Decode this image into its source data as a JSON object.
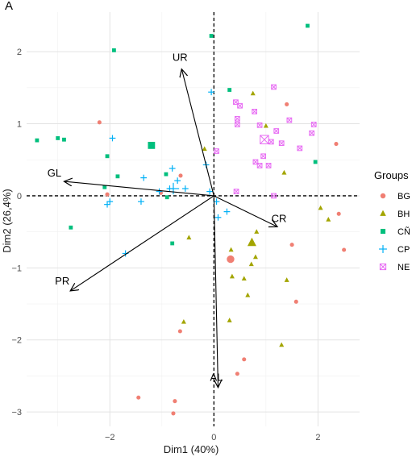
{
  "panel_label": "A",
  "chart_data": {
    "type": "scatter",
    "subtype": "PCA biplot",
    "xlabel": "Dim1 (40%)",
    "ylabel": "Dim2 (26,4%)",
    "xlim": [
      -3.6,
      2.8
    ],
    "ylim": [
      -3.2,
      2.55
    ],
    "x_ticks": [
      -2,
      0,
      2
    ],
    "y_ticks": [
      -3,
      -2,
      -1,
      0,
      1,
      2
    ],
    "grid": true,
    "legend": {
      "title": "Groups",
      "position": "right",
      "entries": [
        {
          "name": "BG",
          "color": "#f07f73",
          "shape": "circle"
        },
        {
          "name": "BH",
          "color": "#a3a500",
          "shape": "triangle"
        },
        {
          "name": "CÑ",
          "color": "#00bf7d",
          "shape": "square"
        },
        {
          "name": "CP",
          "color": "#00b0f6",
          "shape": "plus"
        },
        {
          "name": "NE",
          "color": "#e76bf3",
          "shape": "boxx"
        }
      ]
    },
    "vectors": [
      {
        "label": "UR",
        "x": -0.62,
        "y": 1.76
      },
      {
        "label": "GL",
        "x": -2.88,
        "y": 0.2
      },
      {
        "label": "CR",
        "x": 1.22,
        "y": -0.43
      },
      {
        "label": "PR",
        "x": -2.76,
        "y": -1.32
      },
      {
        "label": "AL",
        "x": 0.08,
        "y": -2.66
      }
    ],
    "series": [
      {
        "name": "BG",
        "points": [
          [
            -2.2,
            1.02
          ],
          [
            1.4,
            1.27
          ],
          [
            -1.02,
            0.04
          ],
          [
            -0.64,
            0.28
          ],
          [
            -2.05,
            0.02
          ],
          [
            2.35,
            0.72
          ],
          [
            2.4,
            -0.25
          ],
          [
            2.5,
            -0.75
          ],
          [
            1.5,
            -0.68
          ],
          [
            1.58,
            -1.47
          ],
          [
            0.58,
            -2.27
          ],
          [
            0.45,
            -2.47
          ],
          [
            -0.65,
            -1.88
          ],
          [
            -1.45,
            -2.8
          ],
          [
            -0.75,
            -2.85
          ],
          [
            -0.78,
            -3.02
          ]
        ],
        "centroid": [
          0.32,
          -0.88
        ]
      },
      {
        "name": "BH",
        "points": [
          [
            -0.18,
            0.65
          ],
          [
            0.75,
            1.42
          ],
          [
            1.0,
            0.97
          ],
          [
            1.35,
            0.32
          ],
          [
            2.05,
            -0.17
          ],
          [
            2.2,
            -0.33
          ],
          [
            0.82,
            -0.5
          ],
          [
            -0.48,
            -0.58
          ],
          [
            0.33,
            -0.75
          ],
          [
            0.8,
            -0.85
          ],
          [
            0.72,
            -0.95
          ],
          [
            0.35,
            -1.12
          ],
          [
            0.58,
            -1.15
          ],
          [
            0.65,
            -1.38
          ],
          [
            1.4,
            -1.17
          ],
          [
            0.3,
            -1.73
          ],
          [
            -0.58,
            -1.75
          ],
          [
            1.3,
            -2.07
          ]
        ],
        "centroid": [
          0.73,
          -0.65
        ]
      },
      {
        "name": "CÑ",
        "points": [
          [
            -0.05,
            2.22
          ],
          [
            1.8,
            2.36
          ],
          [
            -1.92,
            2.02
          ],
          [
            0.3,
            1.47
          ],
          [
            -3.0,
            0.8
          ],
          [
            -2.88,
            0.78
          ],
          [
            -3.4,
            0.77
          ],
          [
            -1.85,
            0.27
          ],
          [
            -2.05,
            0.55
          ],
          [
            -2.1,
            0.12
          ],
          [
            1.95,
            0.47
          ],
          [
            -0.92,
            0.3
          ],
          [
            -0.9,
            -0.02
          ],
          [
            -2.75,
            -0.44
          ],
          [
            -0.8,
            -0.66
          ]
        ],
        "centroid": [
          -1.2,
          0.7
        ]
      },
      {
        "name": "CP",
        "points": [
          [
            -1.95,
            0.8
          ],
          [
            -0.05,
            1.44
          ],
          [
            -0.15,
            0.43
          ],
          [
            -0.8,
            0.38
          ],
          [
            -0.7,
            0.21
          ],
          [
            -1.35,
            0.25
          ],
          [
            -1.05,
            0.06
          ],
          [
            -0.55,
            0.1
          ],
          [
            -0.85,
            0.1
          ],
          [
            -1.4,
            -0.08
          ],
          [
            -2.0,
            -0.08
          ],
          [
            -2.05,
            -0.12
          ],
          [
            -0.08,
            0.06
          ],
          [
            0.08,
            -0.3
          ],
          [
            0.25,
            -0.22
          ],
          [
            -1.7,
            -0.8
          ],
          [
            0.05,
            -0.08
          ]
        ],
        "centroid": [
          -0.78,
          0.1
        ]
      },
      {
        "name": "NE",
        "points": [
          [
            1.15,
            1.51
          ],
          [
            0.42,
            1.3
          ],
          [
            0.5,
            1.25
          ],
          [
            0.45,
            1.07
          ],
          [
            0.78,
            1.17
          ],
          [
            1.45,
            1.05
          ],
          [
            0.45,
            0.99
          ],
          [
            0.88,
            0.98
          ],
          [
            1.2,
            0.9
          ],
          [
            1.92,
            0.99
          ],
          [
            1.88,
            0.87
          ],
          [
            1.1,
            0.75
          ],
          [
            1.3,
            0.73
          ],
          [
            1.65,
            0.66
          ],
          [
            0.05,
            0.62
          ],
          [
            0.95,
            0.55
          ],
          [
            0.88,
            0.42
          ],
          [
            0.8,
            0.47
          ],
          [
            1.05,
            0.42
          ],
          [
            0.43,
            0.06
          ],
          [
            1.15,
            0.0
          ]
        ],
        "centroid": [
          0.97,
          0.78
        ]
      }
    ]
  }
}
